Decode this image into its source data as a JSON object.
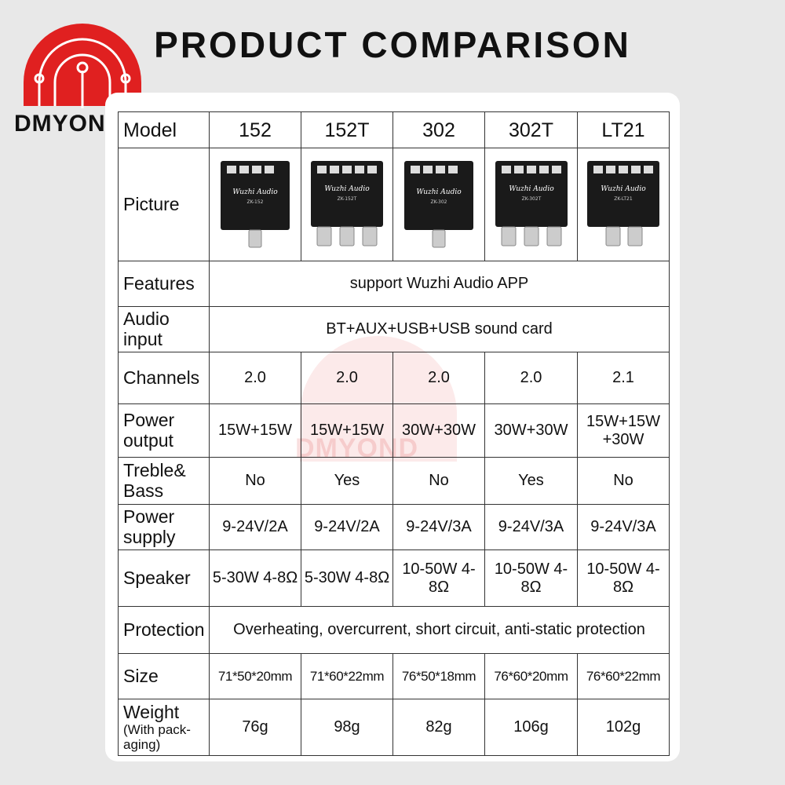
{
  "title": "PRODUCT COMPARISON",
  "brand": "DMYOND",
  "watermark": "DMYOND",
  "colors": {
    "logo_red": "#e02020",
    "board_black": "#1a1a1a"
  },
  "table": {
    "header_label": "Model",
    "models": [
      "152",
      "152T",
      "302",
      "302T",
      "LT21"
    ],
    "picture_label": "Picture",
    "features": {
      "label": "Features",
      "value": "support Wuzhi Audio APP"
    },
    "audio_input": {
      "label": "Audio input",
      "value": "BT+AUX+USB+USB sound card"
    },
    "channels": {
      "label": "Channels",
      "values": [
        "2.0",
        "2.0",
        "2.0",
        "2.0",
        "2.1"
      ]
    },
    "power_output": {
      "label": "Power output",
      "values": [
        "15W+15W",
        "15W+15W",
        "30W+30W",
        "30W+30W",
        "15W+15W +30W"
      ]
    },
    "treble_bass": {
      "label": "Treble& Bass",
      "values": [
        "No",
        "Yes",
        "No",
        "Yes",
        "No"
      ]
    },
    "power_supply": {
      "label": "Power supply",
      "values": [
        "9-24V/2A",
        "9-24V/2A",
        "9-24V/3A",
        "9-24V/3A",
        "9-24V/3A"
      ]
    },
    "speaker": {
      "label": "Speaker",
      "values": [
        "5-30W 4-8Ω",
        "5-30W 4-8Ω",
        "10-50W 4-8Ω",
        "10-50W 4-8Ω",
        "10-50W 4-8Ω"
      ]
    },
    "protection": {
      "label": "Protection",
      "value": "Overheating, overcurrent, short circuit, anti-static protection"
    },
    "size": {
      "label": "Size",
      "values": [
        "71*50*20mm",
        "71*60*22mm",
        "76*50*18mm",
        "76*60*20mm",
        "76*60*22mm"
      ]
    },
    "weight": {
      "label": "Weight",
      "sublabel": "(With pack-aging)",
      "values": [
        "76g",
        "98g",
        "82g",
        "106g",
        "102g"
      ]
    }
  },
  "boards": [
    {
      "brand": "Wuzhi Audio",
      "model": "ZK-152",
      "knobs": 1
    },
    {
      "brand": "Wuzhi Audio",
      "model": "ZK-152T",
      "knobs": 3
    },
    {
      "brand": "Wuzhi Audio",
      "model": "ZK-302",
      "knobs": 1
    },
    {
      "brand": "Wuzhi Audio",
      "model": "ZK-302T",
      "knobs": 3
    },
    {
      "brand": "Wuzhi Audio",
      "model": "ZK-LT21",
      "knobs": 2
    }
  ]
}
